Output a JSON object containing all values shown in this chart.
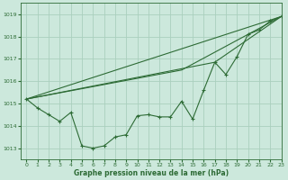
{
  "title": "Graphe pression niveau de la mer (hPa)",
  "background_color": "#cce8dc",
  "grid_color": "#aacfbe",
  "line_color": "#2d6b35",
  "xlim": [
    -0.5,
    23
  ],
  "ylim": [
    1012.5,
    1019.5
  ],
  "yticks": [
    1013,
    1014,
    1015,
    1016,
    1017,
    1018,
    1019
  ],
  "xticks": [
    0,
    1,
    2,
    3,
    4,
    5,
    6,
    7,
    8,
    9,
    10,
    11,
    12,
    13,
    14,
    15,
    16,
    17,
    18,
    19,
    20,
    21,
    22,
    23
  ],
  "series1_x": [
    0,
    1,
    2,
    3,
    4,
    5,
    6,
    7,
    8,
    9,
    10,
    11,
    12,
    13,
    14,
    15,
    16,
    17,
    18,
    19,
    20,
    21,
    22,
    23
  ],
  "series1_y": [
    1015.2,
    1014.8,
    1014.5,
    1014.2,
    1014.6,
    1013.1,
    1013.0,
    1013.1,
    1013.5,
    1013.6,
    1014.45,
    1014.5,
    1014.4,
    1014.4,
    1015.1,
    1014.3,
    1015.6,
    1016.85,
    1016.3,
    1017.1,
    1018.1,
    1018.3,
    1018.7,
    1018.9
  ],
  "series2_x": [
    0,
    23
  ],
  "series2_y": [
    1015.2,
    1018.9
  ],
  "series3_x": [
    0,
    14,
    23
  ],
  "series3_y": [
    1015.2,
    1016.5,
    1018.9
  ],
  "series4_x": [
    0,
    17,
    23
  ],
  "series4_y": [
    1015.2,
    1016.85,
    1018.9
  ],
  "title_fontsize": 5.5,
  "tick_fontsize": 4.5
}
